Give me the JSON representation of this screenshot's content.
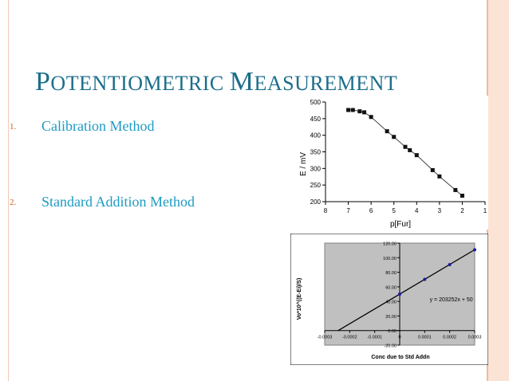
{
  "slide": {
    "title_first_big": "P",
    "title_first_rest": "OTENTIOMETRIC",
    "title_second_big": "M",
    "title_second_rest": "EASUREMENT"
  },
  "list": [
    {
      "num": "1.",
      "label": "Calibration Method"
    },
    {
      "num": "2.",
      "label": "Standard Addition Method"
    }
  ],
  "colors": {
    "title": "#1b6e8a",
    "item_label": "#1e9ac3",
    "item_num": "#d05a2a"
  },
  "chart_data": [
    {
      "type": "line",
      "xlabel": "p[Fur]",
      "ylabel": "E / mV",
      "xlim": [
        8,
        1
      ],
      "ylim": [
        200,
        500
      ],
      "xticks": [
        8,
        7,
        6,
        5,
        4,
        3,
        2,
        1
      ],
      "yticks": [
        200,
        250,
        300,
        350,
        400,
        450,
        500
      ],
      "grid": false,
      "x": [
        7.0,
        6.8,
        6.5,
        6.3,
        6.0,
        5.3,
        5.0,
        4.5,
        4.3,
        4.0,
        3.3,
        3.0,
        2.3,
        2.0
      ],
      "y": [
        476,
        476,
        472,
        469,
        455,
        412,
        395,
        365,
        355,
        340,
        295,
        276,
        235,
        218
      ]
    },
    {
      "type": "scatter",
      "xlabel": "Conc due to Std Addn",
      "ylabel": "Vo*10^((E-Ei)/S)",
      "xlim": [
        -0.0003,
        0.0003
      ],
      "ylim": [
        -20,
        120
      ],
      "xtick_labels": [
        "-0.0003",
        "-0.0002",
        "-0.0001",
        "0",
        "0.0001",
        "0.0002",
        "0.0003"
      ],
      "ytick_labels": [
        "-20.00",
        "0.00",
        "20.00",
        "40.00",
        "60.00",
        "80.00",
        "100.00",
        "120.00"
      ],
      "xticks": [
        -0.0003,
        -0.0002,
        -0.0001,
        0,
        0.0001,
        0.0002,
        0.0003
      ],
      "yticks": [
        -20,
        0,
        20,
        40,
        60,
        80,
        100,
        120
      ],
      "x": [
        0,
        0.0001,
        0.0002,
        0.0003
      ],
      "y": [
        50,
        70.3,
        90.5,
        110.8
      ],
      "fit_line": {
        "slope": 203252,
        "intercept": 50,
        "x_range": [
          -0.000246,
          0.0003
        ]
      },
      "equation": "y = 203252x + 50"
    }
  ]
}
